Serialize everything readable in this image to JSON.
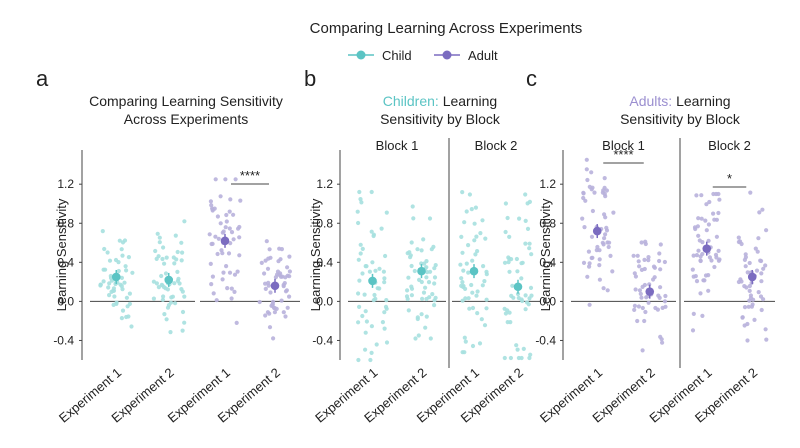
{
  "figure": {
    "title": "Comparing Learning Across Experiments",
    "legend": [
      {
        "label": "Child",
        "color": "#5bc4c4"
      },
      {
        "label": "Adult",
        "color": "#7b6cc0"
      }
    ],
    "colors": {
      "child": "#5bc4c4",
      "child_light": "#a6e0df",
      "adult": "#7b6cc0",
      "adult_light": "#b8b1dc"
    }
  },
  "chart_data": [
    {
      "type": "scatter",
      "panel_letter": "a",
      "title_line1": "Comparing Learning Sensitivity",
      "title_line2": "Across Experiments",
      "ylabel": "Learning Sensitivity",
      "ylim": [
        -0.6,
        1.55
      ],
      "yticks": [
        "1.2",
        "0.8",
        "0.4",
        "0.0",
        "-0.4"
      ],
      "groups": [
        {
          "label": "Child",
          "categories": [
            "Experiment 1",
            "Experiment 2"
          ],
          "series": [
            {
              "group": "child",
              "mean": 0.25,
              "min": -0.35,
              "max": 0.72
            },
            {
              "group": "child",
              "mean": 0.22,
              "min": -0.45,
              "max": 0.82
            }
          ]
        },
        {
          "label": "Adult",
          "categories": [
            "Experiment 1",
            "Experiment 2"
          ],
          "series": [
            {
              "group": "adult",
              "mean": 0.62,
              "min": -0.22,
              "max": 1.25
            },
            {
              "group": "adult",
              "mean": 0.16,
              "min": -0.42,
              "max": 0.62
            }
          ]
        }
      ],
      "annotations": [
        {
          "text": "****",
          "group_index": 1
        }
      ]
    },
    {
      "type": "scatter",
      "panel_letter": "b",
      "title_colored": "Children:",
      "title_rest": " Learning",
      "title_line2": "Sensitivity by Block",
      "title_color": "#5bc4c4",
      "ylabel": "Learning Sensitivity",
      "ylim": [
        -0.6,
        1.55
      ],
      "yticks": [
        "1.2",
        "0.8",
        "0.4",
        "0.0",
        "-0.4"
      ],
      "groups": [
        {
          "label": "Block 1",
          "categories": [
            "Experiment 1",
            "Experiment 2"
          ],
          "series": [
            {
              "group": "child",
              "mean": 0.21,
              "min": -0.6,
              "max": 1.12
            },
            {
              "group": "child",
              "mean": 0.31,
              "min": -0.38,
              "max": 0.98
            }
          ]
        },
        {
          "label": "Block 2",
          "categories": [
            "Experiment 1",
            "Experiment 2"
          ],
          "series": [
            {
              "group": "child",
              "mean": 0.31,
              "min": -0.52,
              "max": 1.12
            },
            {
              "group": "child",
              "mean": 0.15,
              "min": -0.58,
              "max": 1.45
            }
          ]
        }
      ],
      "annotations": []
    },
    {
      "type": "scatter",
      "panel_letter": "c",
      "title_colored": "Adults:",
      "title_rest": " Learning",
      "title_line2": "Sensitivity by Block",
      "title_color": "#9b8fd0",
      "ylabel": "Learning Sensitivity",
      "ylim": [
        -0.6,
        1.55
      ],
      "yticks": [
        "1.2",
        "0.8",
        "0.4",
        "0.0",
        "-0.4"
      ],
      "groups": [
        {
          "label": "Block 1",
          "categories": [
            "Experiment 1",
            "Experiment 2"
          ],
          "series": [
            {
              "group": "adult",
              "mean": 0.72,
              "min": -0.1,
              "max": 1.45
            },
            {
              "group": "adult",
              "mean": 0.1,
              "min": -0.6,
              "max": 0.72
            }
          ]
        },
        {
          "label": "Block 2",
          "categories": [
            "Experiment 1",
            "Experiment 2"
          ],
          "series": [
            {
              "group": "adult",
              "mean": 0.54,
              "min": -0.45,
              "max": 1.1
            },
            {
              "group": "adult",
              "mean": 0.25,
              "min": -0.4,
              "max": 1.12
            }
          ]
        }
      ],
      "annotations": [
        {
          "text": "****",
          "group_index": 0
        },
        {
          "text": "*",
          "group_index": 1
        }
      ]
    }
  ]
}
